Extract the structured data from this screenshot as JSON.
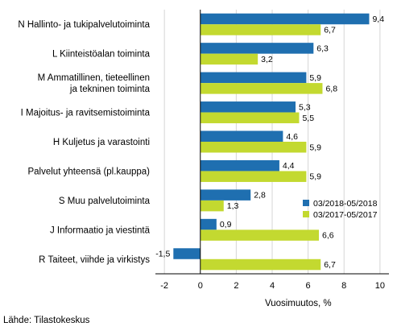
{
  "chart_data": {
    "type": "bar",
    "orientation": "horizontal",
    "categories": [
      [
        "N Hallinto- ja tukipalvelutoiminta"
      ],
      [
        "L Kiinteistöalan toiminta"
      ],
      [
        "M Ammatillinen, tieteellinen",
        "ja tekninen toiminta"
      ],
      [
        "I Majoitus- ja ravitsemistoiminta"
      ],
      [
        "H Kuljetus ja varastointi"
      ],
      [
        "Palvelut yhteensä (pl.kauppa)"
      ],
      [
        "S Muu palvelutoiminta"
      ],
      [
        "J Informaatio ja viestintä"
      ],
      [
        "R Taiteet, viihde ja virkistys"
      ]
    ],
    "series": [
      {
        "name": "03/2018-05/2018",
        "color": "#1f6fb0",
        "values": [
          9.4,
          6.3,
          5.9,
          5.3,
          4.6,
          4.4,
          2.8,
          0.9,
          -1.5
        ],
        "labels": [
          "9,4",
          "6,3",
          "5,9",
          "5,3",
          "4,6",
          "4,4",
          "2,8",
          "0,9",
          "-1,5"
        ]
      },
      {
        "name": "03/2017-05/2017",
        "color": "#c3d930",
        "values": [
          6.7,
          3.2,
          6.8,
          5.5,
          5.9,
          5.9,
          1.3,
          6.6,
          6.7
        ],
        "labels": [
          "6,7",
          "3,2",
          "6,8",
          "5,5",
          "5,9",
          "5,9",
          "1,3",
          "6,6",
          "6,7"
        ]
      }
    ],
    "xlabel": "Vuosimuutos, %",
    "xlim": [
      -2.5,
      10.5
    ],
    "xticks": [
      -2,
      0,
      2,
      4,
      6,
      8,
      10
    ],
    "xtick_labels": [
      "-2",
      "0",
      "2",
      "4",
      "6",
      "8",
      "10"
    ],
    "grid": true,
    "legend_position": "right"
  },
  "source": "Lähde: Tilastokeskus"
}
